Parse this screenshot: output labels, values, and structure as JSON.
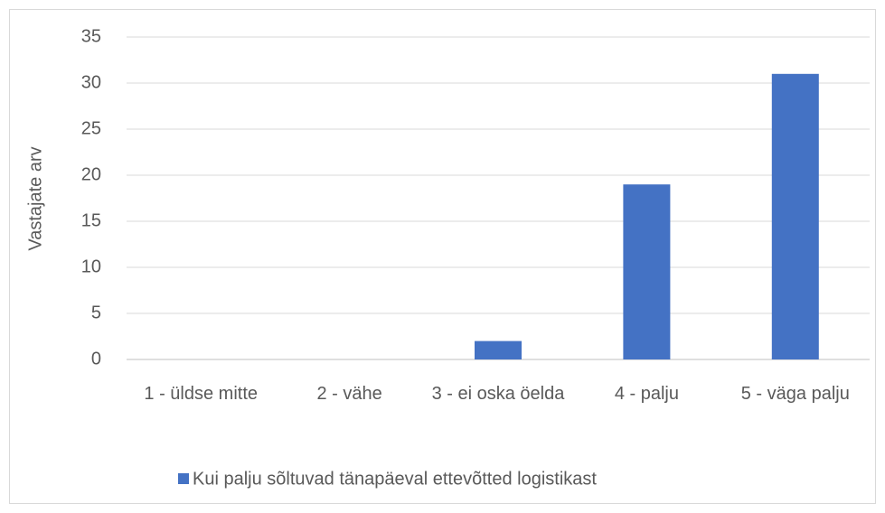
{
  "chart_data": {
    "type": "bar",
    "categories": [
      "1 - üldse mitte",
      "2 - vähe",
      "3 - ei oska öelda",
      "4 - palju",
      "5 - väga palju"
    ],
    "series": [
      {
        "name": "Kui palju sõltuvad tänapäeval ettevõtted logistikast",
        "color": "#4472c4",
        "values": [
          0,
          0,
          2,
          19,
          31
        ]
      }
    ],
    "y_label": "Vastajate arv",
    "ylim": [
      0,
      35
    ],
    "yticks": [
      0,
      5,
      10,
      15,
      20,
      25,
      30,
      35
    ],
    "grid": true,
    "legend": "bottom"
  }
}
